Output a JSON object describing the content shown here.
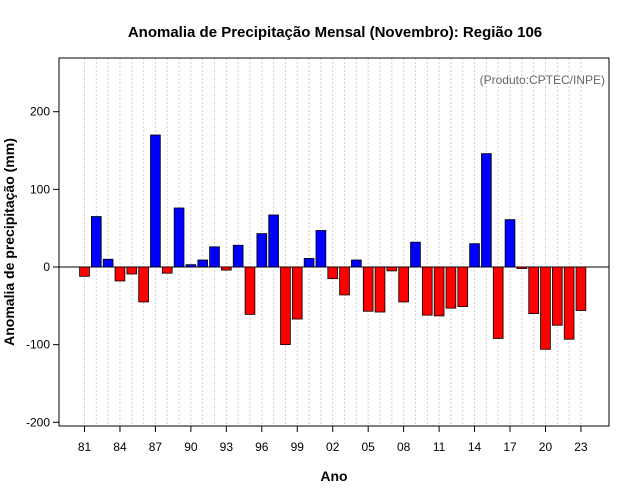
{
  "chart_data": {
    "type": "bar",
    "title": "Anomalia de Precipitação Mensal (Novembro): Região 106",
    "credit": "(Produto:CPTEC/INPE)",
    "xlabel": "Ano",
    "ylabel": "Anomalia de precipitação (mm)",
    "ylim": [
      -205,
      270
    ],
    "yticks": [
      -200,
      -100,
      0,
      100,
      200
    ],
    "xtick_labels": [
      "81",
      "84",
      "87",
      "90",
      "93",
      "96",
      "99",
      "02",
      "05",
      "08",
      "11",
      "14",
      "17",
      "20",
      "23"
    ],
    "positive_color": "#0000ff",
    "negative_color": "#ff0000",
    "categories": [
      "1981",
      "1982",
      "1983",
      "1984",
      "1985",
      "1986",
      "1987",
      "1988",
      "1989",
      "1990",
      "1991",
      "1992",
      "1993",
      "1994",
      "1995",
      "1996",
      "1997",
      "1998",
      "1999",
      "2000",
      "2001",
      "2002",
      "2003",
      "2004",
      "2005",
      "2006",
      "2007",
      "2008",
      "2009",
      "2010",
      "2011",
      "2012",
      "2013",
      "2014",
      "2015",
      "2016",
      "2017",
      "2018",
      "2019",
      "2020",
      "2021",
      "2022",
      "2023"
    ],
    "values": [
      -12,
      65,
      10,
      -18,
      -9,
      -45,
      170,
      -8,
      76,
      3,
      9,
      26,
      -4,
      28,
      -61,
      43,
      67,
      -100,
      -67,
      11,
      47,
      -15,
      -36,
      9,
      -57,
      -58,
      -5,
      -45,
      32,
      -62,
      -63,
      -53,
      -51,
      30,
      146,
      -92,
      61,
      -2,
      -60,
      -106,
      -75,
      -93,
      -56
    ]
  }
}
